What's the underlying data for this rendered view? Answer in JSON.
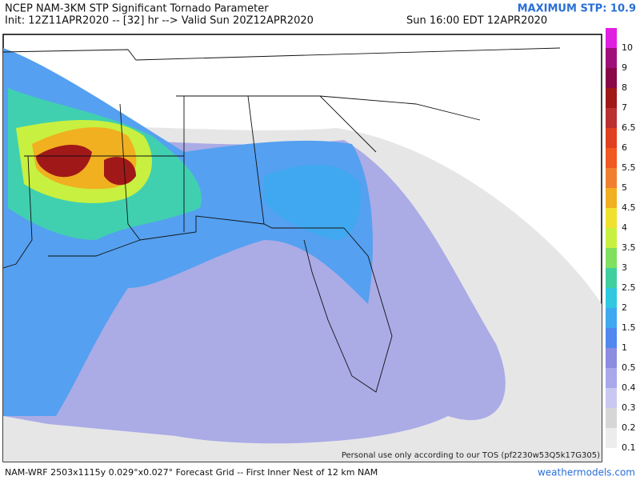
{
  "header": {
    "title": "NCEP NAM-3KM STP Significant Tornado Parameter",
    "init": "Init: 12Z11APR2020 -- [32] hr --> Valid Sun 20Z12APR2020",
    "valid_local": "Sun 16:00 EDT 12APR2020",
    "maximum": "MAXIMUM STP: 10.9"
  },
  "colorbar": {
    "levels": [
      {
        "label": "10",
        "color": "#e020e0"
      },
      {
        "label": "9",
        "color": "#a0107a"
      },
      {
        "label": "8",
        "color": "#880848"
      },
      {
        "label": "7",
        "color": "#a01818"
      },
      {
        "label": "6.5",
        "color": "#bb3030"
      },
      {
        "label": "6",
        "color": "#e04020"
      },
      {
        "label": "5.5",
        "color": "#f05a20"
      },
      {
        "label": "5",
        "color": "#f08030"
      },
      {
        "label": "4.5",
        "color": "#f0b020"
      },
      {
        "label": "4",
        "color": "#f0e030"
      },
      {
        "label": "3.5",
        "color": "#c8f040"
      },
      {
        "label": "3",
        "color": "#80e060"
      },
      {
        "label": "2.5",
        "color": "#40d0a0"
      },
      {
        "label": "2",
        "color": "#30c8e0"
      },
      {
        "label": "1.5",
        "color": "#40a8f0"
      },
      {
        "label": "1",
        "color": "#5088f0"
      },
      {
        "label": "0.5",
        "color": "#8c8ce0"
      },
      {
        "label": "0.4",
        "color": "#a8a8ea"
      },
      {
        "label": "0.3",
        "color": "#c8c8f0"
      },
      {
        "label": "0.2",
        "color": "#d6d6d6"
      },
      {
        "label": "0.1",
        "color": "#ececec"
      }
    ]
  },
  "map": {
    "disclaimer": "Personal use only according to our TOS (pf2230w53Q5k17G305)"
  },
  "footer": {
    "grid": "NAM-WRF 2503x1115y 0.029°x0.027° Forecast Grid -- First Inner Nest of 12 km NAM",
    "source": "weathermodels.com"
  }
}
